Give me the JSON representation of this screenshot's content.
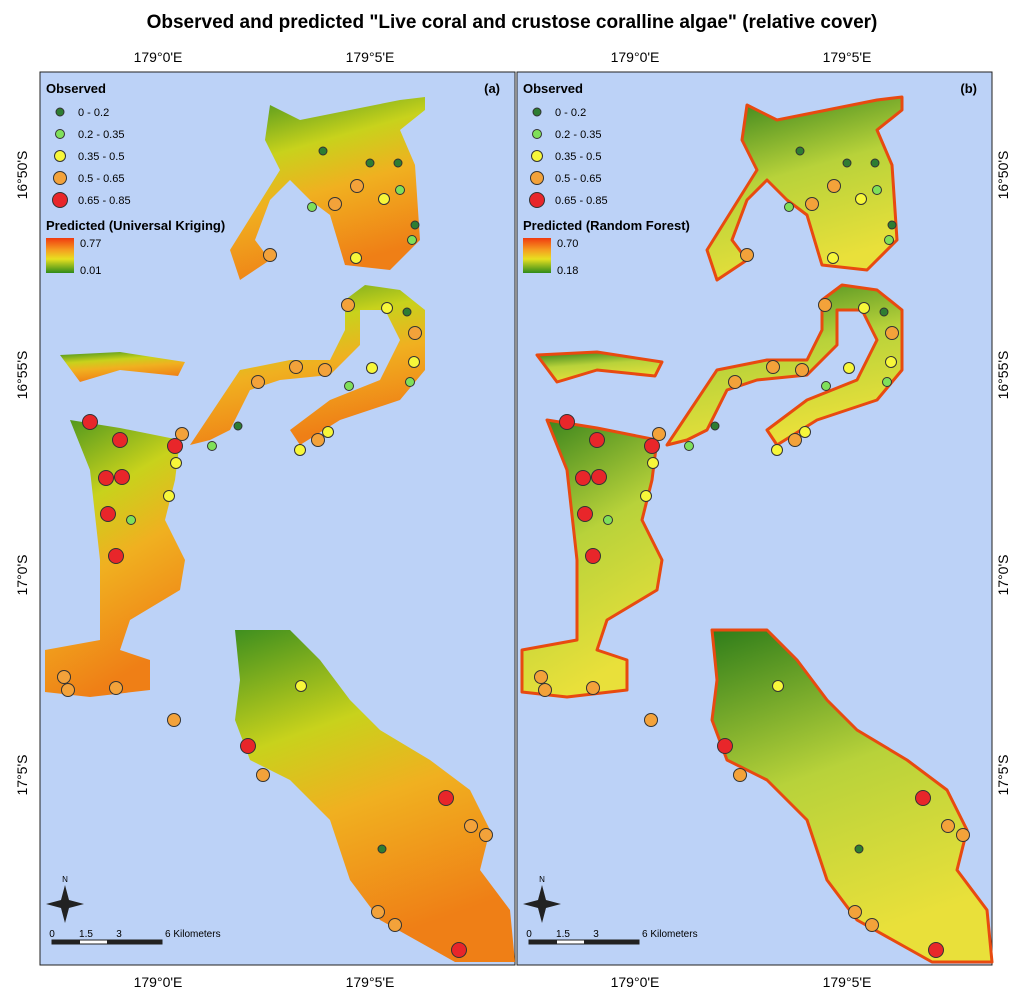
{
  "title": "Observed and predicted \"Live coral and crustose coralline algae\" (relative cover)",
  "x_labels": [
    "179°0'E",
    "179°5'E"
  ],
  "y_labels": [
    "16°50'S",
    "16°55'S",
    "17°0'S",
    "17°5'S"
  ],
  "north": "N",
  "scale_labels": [
    "0",
    "1.5",
    "3",
    "6 Kilometers"
  ],
  "observed_title": "Observed",
  "observed_classes": [
    "0 - 0.2",
    "0.2 - 0.35",
    "0.35 - 0.5",
    "0.5 - 0.65",
    "0.65 - 0.85"
  ],
  "observed_colors": [
    "#2e7d32",
    "#7fe05a",
    "#f7f73a",
    "#f3a23a",
    "#e8262a"
  ],
  "panels": [
    {
      "label": "(a)",
      "predicted_title": "Predicted (Universal Kriging)",
      "predicted_max": "0.77",
      "predicted_min": "0.01"
    },
    {
      "label": "(b)",
      "predicted_title": "Predicted (Random Forest)",
      "predicted_max": "0.70",
      "predicted_min": "0.18"
    }
  ]
}
